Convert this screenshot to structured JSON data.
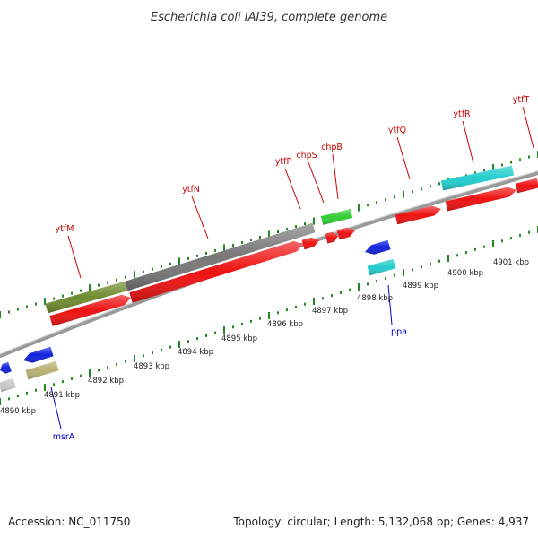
{
  "title": "Escherichia coli IAI39, complete genome",
  "footer": {
    "accession": "Accession: NC_011750",
    "stats": "Topology: circular; Length: 5,132,068 bp; Genes: 4,937"
  },
  "scale_labels": [
    "4890 kbp",
    "4891 kbp",
    "4892 kbp",
    "4893 kbp",
    "4894 kbp",
    "4895 kbp",
    "4896 kbp",
    "4897 kbp",
    "4898 kbp",
    "4899 kbp",
    "4900 kbp",
    "4901 kbp"
  ],
  "gene_labels": [
    {
      "name": "ytfM",
      "color": "#cc0000"
    },
    {
      "name": "ytfN",
      "color": "#cc0000"
    },
    {
      "name": "ytfP",
      "color": "#cc0000"
    },
    {
      "name": "chpS",
      "color": "#cc0000"
    },
    {
      "name": "chpB",
      "color": "#cc0000"
    },
    {
      "name": "ytfQ",
      "color": "#cc0000"
    },
    {
      "name": "ytfR",
      "color": "#cc0000"
    },
    {
      "name": "ytfT",
      "color": "#cc0000"
    },
    {
      "name": "ppa",
      "color": "#0000cc"
    },
    {
      "name": "msrA",
      "color": "#0000cc"
    }
  ],
  "colors": {
    "cds_forward": "#ee1111",
    "cds_reverse": "#1122dd",
    "backbone": "#888888",
    "ticks": "#228822",
    "gene_olive": "#6e8b2e",
    "gene_gray": "#777777",
    "gene_green": "#33cc33",
    "gene_cyan": "#22cccc",
    "gene_khaki": "#b8b070",
    "gene_lightgray": "#c8c8c8"
  }
}
